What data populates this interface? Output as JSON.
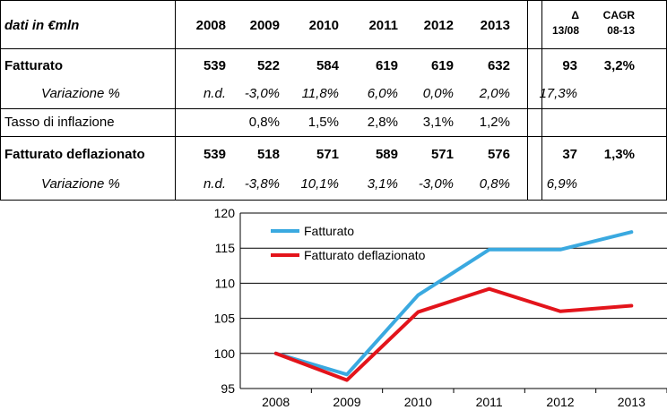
{
  "table": {
    "header": {
      "label": "dati in €mln",
      "years": [
        "2008",
        "2009",
        "2010",
        "2011",
        "2012",
        "2013"
      ],
      "delta": [
        "Δ",
        "13/08"
      ],
      "cagr": [
        "CAGR",
        "08-13"
      ]
    },
    "rows": [
      {
        "label": "Fatturato",
        "values": [
          "539",
          "522",
          "584",
          "619",
          "619",
          "632"
        ],
        "delta": "93",
        "cagr": "3,2%"
      },
      {
        "label": "Variazione %",
        "values": [
          "n.d.",
          "-3,0%",
          "11,8%",
          "6,0%",
          "0,0%",
          "2,0%"
        ],
        "delta": "17,3%",
        "cagr": ""
      },
      {
        "label": "Tasso di inflazione",
        "values": [
          "",
          "0,8%",
          "1,5%",
          "2,8%",
          "3,1%",
          "1,2%"
        ],
        "delta": "",
        "cagr": ""
      },
      {
        "label": "Fatturato deflazionato",
        "values": [
          "539",
          "518",
          "571",
          "589",
          "571",
          "576"
        ],
        "delta": "37",
        "cagr": "1,3%"
      },
      {
        "label": "Variazione %",
        "values": [
          "n.d.",
          "-3,8%",
          "10,1%",
          "3,1%",
          "-3,0%",
          "0,8%"
        ],
        "delta": "6,9%",
        "cagr": ""
      }
    ]
  },
  "chart_data": {
    "type": "line",
    "categories": [
      "2008",
      "2009",
      "2010",
      "2011",
      "2012",
      "2013"
    ],
    "series": [
      {
        "name": "Fatturato",
        "color": "#3aa9e0",
        "values": [
          100,
          97,
          108.3,
          114.8,
          114.8,
          117.3
        ]
      },
      {
        "name": "Fatturato deflazionato",
        "color": "#e3141b",
        "values": [
          100,
          96.2,
          105.9,
          109.2,
          106.0,
          106.8
        ]
      }
    ],
    "ylim": [
      95,
      120
    ],
    "yticks": [
      "95",
      "100",
      "105",
      "110",
      "115",
      "120"
    ],
    "title": "",
    "xlabel": "",
    "ylabel": "",
    "legend": "top-left"
  }
}
